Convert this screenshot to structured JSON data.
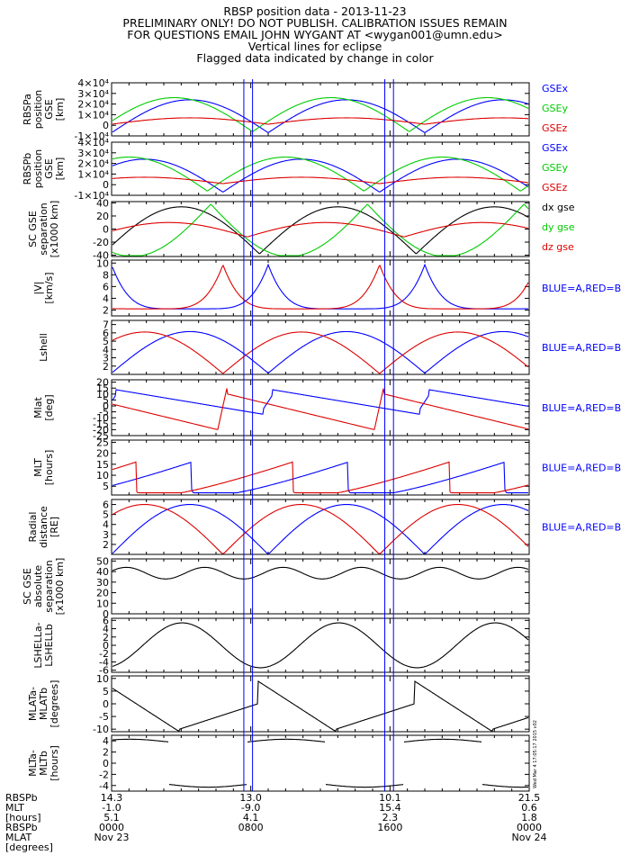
{
  "header": {
    "title": "RBSP position data - 2013-11-23",
    "line2": "PRELIMINARY ONLY! DO NOT PUBLISH. CALIBRATION ISSUES REMAIN",
    "line3": "FOR QUESTIONS EMAIL JOHN WYGANT AT <wygan001@umn.edu>",
    "line4": "Vertical lines for eclipse",
    "line5": "Flagged data indicated by change in color"
  },
  "stamp": "Wed Mar  4 17:05:17 2015 v02",
  "colors": {
    "blue": "#0000ff",
    "green": "#00cc00",
    "red": "#dd0000",
    "black": "#000000"
  },
  "chart_data": [
    {
      "type": "line",
      "id": "p1",
      "ylabel": [
        "RBSPa",
        "position",
        "GSE",
        "[km]"
      ],
      "yticks": [
        "-1×10⁴",
        "0",
        "1×10⁴",
        "2×10⁴",
        "3×10⁴",
        "4×10⁴"
      ],
      "ylim": [
        -10000,
        40000
      ],
      "legend": [
        "GSEx",
        "GSEy",
        "GSEz"
      ]
    },
    {
      "type": "line",
      "id": "p2",
      "ylabel": [
        "RBSPb",
        "position",
        "GSE",
        "[km]"
      ],
      "yticks": [
        "-1×10⁴",
        "0",
        "1×10⁴",
        "2×10⁴",
        "3×10⁴",
        "4×10⁴"
      ],
      "ylim": [
        -10000,
        40000
      ],
      "legend": [
        "GSEx",
        "GSEy",
        "GSEz"
      ]
    },
    {
      "type": "line",
      "id": "p3",
      "ylabel": [
        "SC GSE",
        "separation",
        "[x1000 km]"
      ],
      "yticks": [
        "-40",
        "-20",
        "0",
        "20",
        "40"
      ],
      "ylim": [
        -42,
        42
      ],
      "legend": [
        "dx gse",
        "dy gse",
        "dz gse"
      ]
    },
    {
      "type": "line",
      "id": "p4",
      "ylabel": [
        "|V|",
        "[km/s]"
      ],
      "yticks": [
        "2",
        "4",
        "6",
        "8",
        "10"
      ],
      "ylim": [
        1,
        10.5
      ],
      "legend": [
        "BLUE=A,RED=B"
      ]
    },
    {
      "type": "line",
      "id": "p5",
      "ylabel": [
        "Lshell"
      ],
      "yticks": [
        "2",
        "3",
        "4",
        "5",
        "6",
        "7"
      ],
      "ylim": [
        1,
        7.5
      ],
      "legend": [
        "BLUE=A,RED=B"
      ]
    },
    {
      "type": "line",
      "id": "p6",
      "ylabel": [
        "Mlat",
        "[deg]"
      ],
      "yticks": [
        "-25",
        "-20",
        "-15",
        "-10",
        "-5",
        "0",
        "5",
        "10",
        "15",
        "20"
      ],
      "ylim": [
        -25,
        22
      ],
      "legend": [
        "BLUE=A,RED=B"
      ]
    },
    {
      "type": "line",
      "id": "p7",
      "ylabel": [
        "MLT",
        "[hours]"
      ],
      "yticks": [
        "5",
        "10",
        "15",
        "20",
        "25"
      ],
      "ylim": [
        1,
        26
      ],
      "legend": [
        "BLUE=A,RED=B"
      ]
    },
    {
      "type": "line",
      "id": "p8",
      "ylabel": [
        "Radial",
        "distance",
        "[RE]"
      ],
      "yticks": [
        "2",
        "3",
        "4",
        "5",
        "6"
      ],
      "ylim": [
        1,
        6.5
      ],
      "legend": [
        "BLUE=A,RED=B"
      ]
    },
    {
      "type": "line",
      "id": "p9",
      "ylabel": [
        "SC GSE",
        "absolute",
        "separation",
        "[x1000 km]"
      ],
      "yticks": [
        "0",
        "10",
        "20",
        "30",
        "40",
        "50"
      ],
      "ylim": [
        0,
        52
      ],
      "legend": []
    },
    {
      "type": "line",
      "id": "p10",
      "ylabel": [
        "LSHELLa-",
        "LSHELLb"
      ],
      "yticks": [
        "-6",
        "-4",
        "-2",
        "0",
        "2",
        "4",
        "6"
      ],
      "ylim": [
        -6.5,
        6.5
      ],
      "legend": []
    },
    {
      "type": "line",
      "id": "p11",
      "ylabel": [
        "MLATa-",
        "MLATb",
        "[degrees]"
      ],
      "yticks": [
        "-10",
        "-5",
        "0",
        "5",
        "10"
      ],
      "ylim": [
        -11,
        11
      ],
      "legend": []
    },
    {
      "type": "line",
      "id": "p12",
      "ylabel": [
        "MLTa-",
        "MLTb",
        "[hours]"
      ],
      "yticks": [
        "-4",
        "-2",
        "0",
        "2",
        "4"
      ],
      "ylim": [
        -5,
        5
      ],
      "legend": []
    }
  ],
  "x_axis": {
    "tick_hours": [
      0,
      8,
      16,
      24
    ],
    "eclipses_hours": [
      [
        7.6,
        8.1
      ],
      [
        15.7,
        16.2
      ]
    ],
    "row_labels": [
      "RBSPb",
      "MLT",
      "[hours]",
      "RBSPb",
      "MLAT",
      "[degrees]"
    ],
    "columns": [
      {
        "hour": 0,
        "rows": [
          "14.3",
          "-1.0",
          "5.1",
          "0000",
          "Nov 23"
        ]
      },
      {
        "hour": 8,
        "rows": [
          "13.0",
          "-9.0",
          "4.1",
          "0800",
          ""
        ]
      },
      {
        "hour": 16,
        "rows": [
          "10.1",
          "15.4",
          "2.3",
          "1600",
          ""
        ]
      },
      {
        "hour": 24,
        "rows": [
          "21.5",
          "0.6",
          "1.8",
          "0000",
          "Nov 24"
        ]
      }
    ]
  }
}
